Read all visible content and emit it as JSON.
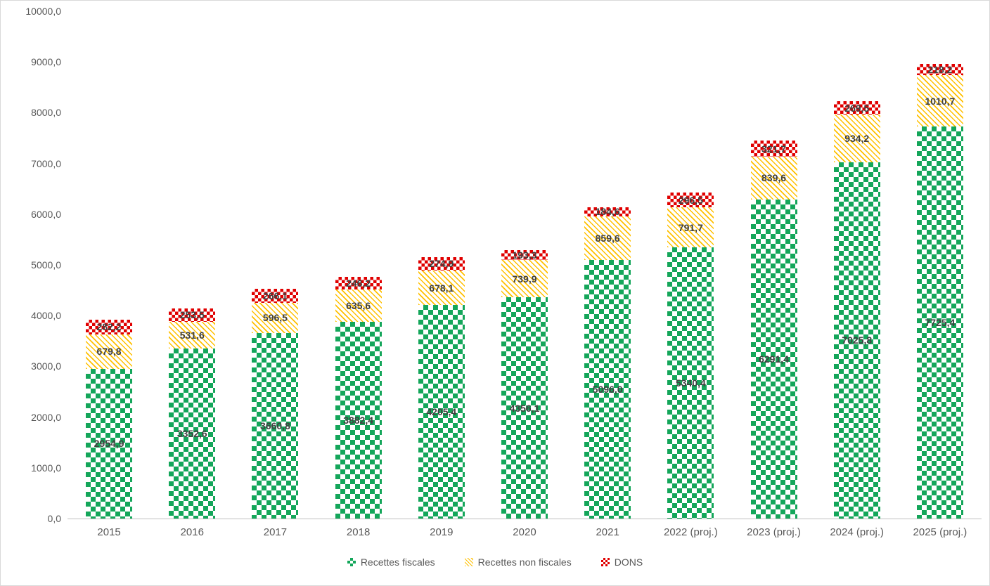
{
  "figure": {
    "background": "#ffffff",
    "border_color": "#d9d9d9",
    "axis_line_color": "#bfbfbf",
    "axis_text_color": "#595959",
    "data_label_color": "#404040"
  },
  "chart_data": {
    "type": "bar",
    "stacked": true,
    "title": "",
    "xlabel": "",
    "ylabel": "",
    "grid": "off",
    "legend_position": "bottom",
    "ylim": [
      0,
      10000
    ],
    "y_tick_step": 1000,
    "y_tick_labels": [
      "0,0",
      "1000,0",
      "2000,0",
      "3000,0",
      "4000,0",
      "5000,0",
      "6000,0",
      "7000,0",
      "8000,0",
      "9000,0",
      "10000,0"
    ],
    "categories": [
      "2015",
      "2016",
      "2017",
      "2018",
      "2019",
      "2020",
      "2021",
      "2022 (proj.)",
      "2023 (proj.)",
      "2024 (proj.)",
      "2025 (proj.)"
    ],
    "series": [
      {
        "name": "Recettes fiscales",
        "color": "#14a65a",
        "pattern": "checker-large",
        "values": [
          "2954,9",
          "3352,6",
          "3660,8",
          "3882,4",
          "4205,4",
          "4356,1",
          "5096,0",
          "5340,4",
          "6291,4",
          "7025,8",
          "7725,4"
        ]
      },
      {
        "name": "Recettes non fiscales",
        "color": "#ffc000",
        "pattern": "diagonal-stripe",
        "values": [
          "679,8",
          "531,6",
          "596,5",
          "635,6",
          "678,1",
          "739,9",
          "859,6",
          "791,7",
          "839,6",
          "934,2",
          "1010,7"
        ]
      },
      {
        "name": "DONS",
        "color": "#e00000",
        "pattern": "checker-small",
        "values": [
          "282,2",
          "253,5",
          "266,1",
          "246,2",
          "274,9",
          "193,3",
          "184,6",
          "296,5",
          "321,7",
          "269,5",
          "218,2"
        ]
      }
    ]
  }
}
